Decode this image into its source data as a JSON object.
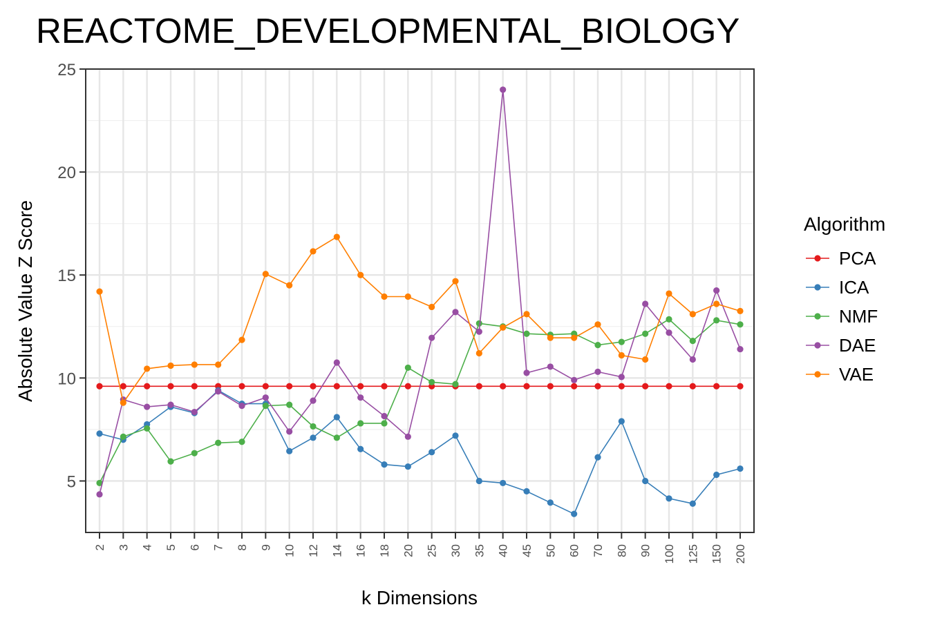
{
  "chart_data": {
    "type": "line",
    "title": "REACTOME_DEVELOPMENTAL_BIOLOGY",
    "xlabel": "k Dimensions",
    "ylabel": "Absolute Value Z Score",
    "categories": [
      "2",
      "3",
      "4",
      "5",
      "6",
      "7",
      "8",
      "9",
      "10",
      "12",
      "14",
      "16",
      "18",
      "20",
      "25",
      "30",
      "35",
      "40",
      "45",
      "50",
      "60",
      "70",
      "80",
      "90",
      "100",
      "125",
      "150",
      "200"
    ],
    "ylim": [
      2.5,
      25
    ],
    "yticks": [
      5,
      10,
      15,
      20,
      25
    ],
    "grid": true,
    "legend": {
      "title": "Algorithm",
      "position": "right"
    },
    "series": [
      {
        "name": "PCA",
        "color": "#e41a1c",
        "values": [
          9.6,
          9.6,
          9.6,
          9.6,
          9.6,
          9.6,
          9.6,
          9.6,
          9.6,
          9.6,
          9.6,
          9.6,
          9.6,
          9.6,
          9.6,
          9.6,
          9.6,
          9.6,
          9.6,
          9.6,
          9.6,
          9.6,
          9.6,
          9.6,
          9.6,
          9.6,
          9.6,
          9.6
        ]
      },
      {
        "name": "ICA",
        "color": "#377eb8",
        "values": [
          7.3,
          7.0,
          7.75,
          8.6,
          8.3,
          9.4,
          8.75,
          8.75,
          6.45,
          7.1,
          8.1,
          6.55,
          5.8,
          5.7,
          6.4,
          7.2,
          5.0,
          4.9,
          4.5,
          3.95,
          3.4,
          6.15,
          7.9,
          5.0,
          4.15,
          3.9,
          5.3,
          5.6
        ]
      },
      {
        "name": "NMF",
        "color": "#4daf4a",
        "values": [
          4.9,
          7.15,
          7.55,
          5.95,
          6.35,
          6.85,
          6.9,
          8.65,
          8.7,
          7.65,
          7.1,
          7.8,
          7.8,
          10.5,
          9.8,
          9.7,
          12.65,
          12.5,
          12.15,
          12.1,
          12.15,
          11.6,
          11.75,
          12.15,
          12.85,
          11.8,
          12.8,
          12.6
        ]
      },
      {
        "name": "DAE",
        "color": "#984ea3",
        "values": [
          4.35,
          8.95,
          8.6,
          8.7,
          8.35,
          9.35,
          8.65,
          9.05,
          7.4,
          8.9,
          10.75,
          9.05,
          8.15,
          7.15,
          11.95,
          13.2,
          12.25,
          24.0,
          10.25,
          10.55,
          9.9,
          10.3,
          10.05,
          13.6,
          12.2,
          10.9,
          14.25,
          11.4
        ]
      },
      {
        "name": "VAE",
        "color": "#ff7f00",
        "values": [
          14.2,
          8.8,
          10.45,
          10.6,
          10.65,
          10.65,
          11.85,
          15.05,
          14.5,
          16.15,
          16.85,
          15.0,
          13.95,
          13.95,
          13.45,
          14.7,
          11.2,
          12.45,
          13.1,
          11.95,
          11.95,
          12.6,
          11.1,
          10.9,
          14.1,
          13.1,
          13.6,
          13.25
        ]
      }
    ]
  }
}
